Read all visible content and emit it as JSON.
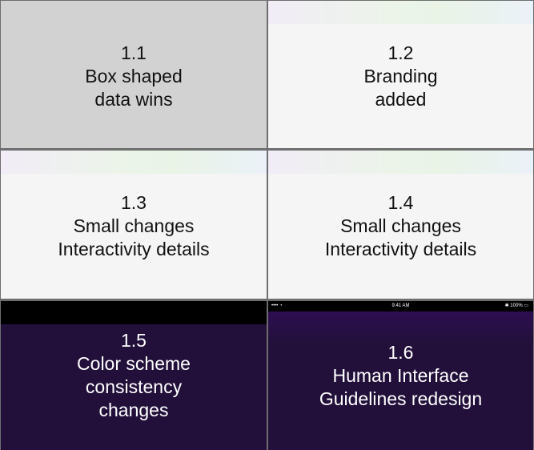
{
  "tiles": [
    {
      "lines": [
        "1.1",
        "Box shaped",
        "data wins"
      ]
    },
    {
      "lines": [
        "1.2",
        "Branding",
        "added"
      ]
    },
    {
      "lines": [
        "1.3",
        "Small changes",
        "Interactivity details"
      ]
    },
    {
      "lines": [
        "1.4",
        "Small changes",
        "Interactivity details"
      ]
    },
    {
      "lines": [
        "1.5",
        "Color scheme",
        "consistency",
        "changes"
      ]
    },
    {
      "lines": [
        "1.6",
        "Human Interface",
        "Guidelines redesign"
      ]
    }
  ],
  "status_bar": {
    "signal": "•••• ◔",
    "time": "9:41 AM",
    "battery": "✱ 100% ▭"
  },
  "colors": {
    "grey_tile": "#d2d2d2",
    "light_tile": "#f5f5f5",
    "purple_tile": "#22103a",
    "divider": "#6e6e6e"
  }
}
